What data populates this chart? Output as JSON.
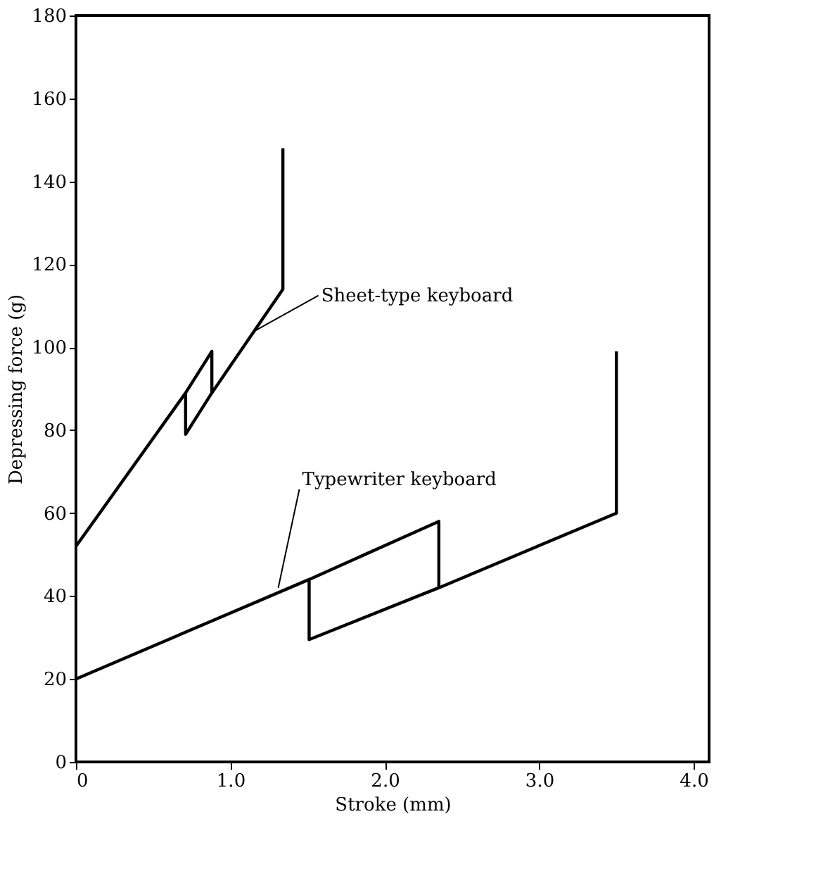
{
  "chart_data": {
    "type": "line",
    "xlabel": "Stroke (mm)",
    "ylabel": "Depressing force (g)",
    "xlim": [
      0,
      4.1
    ],
    "xticks": [
      0,
      {
        "value": 1,
        "label": "1.0"
      },
      {
        "value": 2,
        "label": "2.0"
      },
      {
        "value": 3,
        "label": "3.0"
      },
      {
        "value": 4,
        "label": "4.0"
      }
    ],
    "ylim": [
      0,
      180
    ],
    "yticks": [
      0,
      20,
      40,
      60,
      80,
      100,
      120,
      140,
      160,
      180
    ],
    "grid": false,
    "marker": "none",
    "line_style": "solid",
    "series": [
      {
        "color": "#000000",
        "x": [
          0,
          0.71,
          0.71,
          0.88,
          0.88,
          0.71,
          0.88,
          0.88,
          1.34,
          1.34
        ],
        "values": [
          52,
          89,
          79,
          89,
          99,
          89,
          99,
          89,
          114,
          148
        ]
      },
      {
        "color": "#000000",
        "x": [
          0,
          1.51,
          1.51,
          2.35,
          2.35,
          1.51,
          2.35,
          2.35,
          3.5,
          3.5
        ],
        "values": [
          20,
          44,
          29.5,
          42,
          58,
          44,
          58,
          42,
          60,
          99
        ]
      }
    ],
    "annotations": [
      {
        "text": "Sheet-type keyboard",
        "x": 1.16,
        "y": 104
      },
      {
        "text": "Typewriter keyboard",
        "x": 1.31,
        "y": 42
      }
    ]
  }
}
